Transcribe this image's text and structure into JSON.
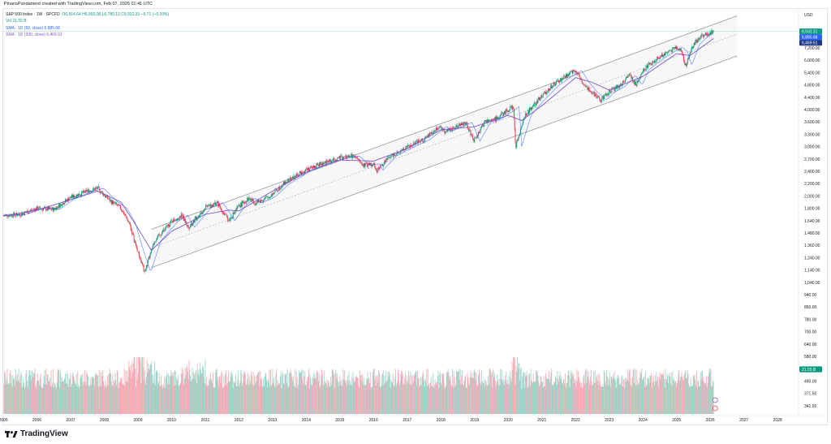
{
  "caption": "PinansPundament created with TradingView.com, Feb 07, 2026 01:41 UTC",
  "legend": {
    "title": "S&P 500 Index · 1W · SPCFD",
    "ohlc": "O6,914.64  H6,993.08  L6,780.13  C6,932.31  −6.71 (−0.10%)",
    "volume": "Vol  21.55 B",
    "sma50": "SMA · 1D (50, close)  6,885.68",
    "sma200": "SMA · 1D (200, close)  6,469.51"
  },
  "price_axis": {
    "currency": "USD",
    "ticks": [
      "8,000.00",
      "7,200.00",
      "6,000.00",
      "5,400.00",
      "4,800.00",
      "4,400.00",
      "4,000.00",
      "3,600.00",
      "3,300.00",
      "3,000.00",
      "2,700.00",
      "2,400.00",
      "2,200.00",
      "2,000.00",
      "1,800.00",
      "1,640.00",
      "1,480.00",
      "1,360.00",
      "1,240.00",
      "1,140.00",
      "1,040.00",
      "940.00",
      "860.00",
      "780.00",
      "700.00",
      "640.00",
      "580.00",
      "530.00",
      "490.00",
      "371.50",
      "341.50"
    ],
    "badges": [
      {
        "label": "6,932.31",
        "color": "#089981"
      },
      {
        "label": "6,885.68",
        "color": "#2962ff"
      },
      {
        "label": "6,469.51",
        "color": "#1e3a8a"
      },
      {
        "label": "21.55 B",
        "color": "#089981"
      }
    ]
  },
  "time_axis": {
    "ticks": [
      "2005",
      "2006",
      "2007",
      "2008",
      "2009",
      "2010",
      "2011",
      "2012",
      "2013",
      "2014",
      "2015",
      "2016",
      "2017",
      "2018",
      "2019",
      "2020",
      "2021",
      "2022",
      "2023",
      "2024",
      "2025",
      "2026",
      "2027",
      "2028"
    ]
  },
  "colors": {
    "up": "#089981",
    "down": "#f23645",
    "sma50": "#2962ff",
    "sma200": "#7e57c2",
    "channel": "#9598a1"
  },
  "chart_data": {
    "type": "line",
    "title": "S&P 500 Index",
    "y_scale": "log",
    "ylim": [
      330,
      8400
    ],
    "xlim": [
      2005.0,
      2028.6
    ],
    "series": [
      {
        "x": [
          2005.0,
          2005.5,
          2006.0,
          2006.5,
          2007.0,
          2007.5,
          2007.8,
          2008.2,
          2008.5,
          2008.75,
          2008.95,
          2009.2,
          2009.5,
          2010.0,
          2010.3,
          2010.5,
          2011.0,
          2011.35,
          2011.7,
          2012.0,
          2012.3,
          2012.5,
          2012.9,
          2013.3,
          2013.6,
          2014.0,
          2014.5,
          2015.0,
          2015.4,
          2015.7,
          2016.0,
          2016.1,
          2016.5,
          2017.0,
          2017.5,
          2018.0,
          2018.1,
          2018.5,
          2018.75,
          2018.98,
          2019.3,
          2019.6,
          2020.0,
          2020.15,
          2020.22,
          2020.5,
          2020.9,
          2021.3,
          2021.7,
          2022.0,
          2022.2,
          2022.45,
          2022.75,
          2022.95,
          2023.3,
          2023.6,
          2023.8,
          2024.0,
          2024.4,
          2024.7,
          2025.0,
          2025.15,
          2025.27,
          2025.5,
          2025.8,
          2026.1
        ],
        "values": [
          1190,
          1200,
          1270,
          1260,
          1410,
          1500,
          1540,
          1360,
          1270,
          1100,
          880,
          690,
          930,
          1120,
          1190,
          1060,
          1280,
          1340,
          1130,
          1300,
          1400,
          1340,
          1420,
          1600,
          1700,
          1840,
          1960,
          2060,
          2100,
          1920,
          1950,
          1830,
          2100,
          2280,
          2460,
          2800,
          2650,
          2800,
          2900,
          2420,
          2900,
          2990,
          3250,
          3380,
          2300,
          3100,
          3600,
          4100,
          4500,
          4770,
          4300,
          3900,
          3600,
          3850,
          4100,
          4550,
          4150,
          4800,
          5300,
          5650,
          5950,
          5700,
          5000,
          6100,
          6700,
          6932
        ]
      },
      {
        "x": [
          2005.0,
          2006.0,
          2007.0,
          2007.8,
          2008.5,
          2009.0,
          2009.4,
          2010.0,
          2011.0,
          2011.7,
          2012.0,
          2013.0,
          2014.0,
          2015.0,
          2016.0,
          2017.0,
          2018.0,
          2019.0,
          2020.0,
          2020.4,
          2021.0,
          2022.0,
          2022.5,
          2023.0,
          2024.0,
          2025.0,
          2025.4,
          2026.1
        ],
        "values": [
          1180,
          1250,
          1380,
          1500,
          1350,
          1050,
          850,
          1020,
          1200,
          1250,
          1240,
          1500,
          1800,
          2020,
          2000,
          2250,
          2700,
          2780,
          3100,
          2950,
          3400,
          4450,
          4250,
          3950,
          4500,
          5600,
          5500,
          6470
        ]
      }
    ],
    "channel": {
      "upper": {
        "x": [
          2009.4,
          2026.8
        ],
        "values": [
          1040,
          8050
        ]
      },
      "middle": {
        "x": [
          2009.4,
          2026.8
        ],
        "values": [
          870,
          6760
        ]
      },
      "lower": {
        "x": [
          2009.4,
          2026.8
        ],
        "values": [
          720,
          5480
        ]
      }
    }
  }
}
